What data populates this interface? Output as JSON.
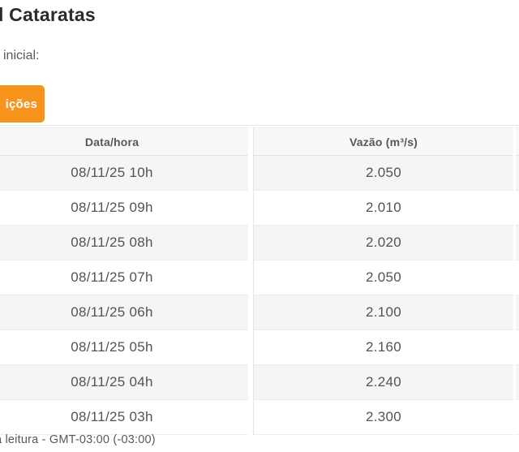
{
  "page": {
    "title_fragment": "l Cataratas",
    "inicial_label_fragment": "inicial:",
    "footer_note_fragment": "a leitura - GMT-03:00 (-03:00)"
  },
  "tab": {
    "label_fragment": "ições",
    "color": "#F7941E"
  },
  "table": {
    "columns": [
      {
        "label": "Data/hora"
      },
      {
        "label": "Vazão (m³/s)"
      }
    ],
    "rows": [
      {
        "datetime": "08/11/25 10h",
        "flow": "2.050"
      },
      {
        "datetime": "08/11/25 09h",
        "flow": "2.010"
      },
      {
        "datetime": "08/11/25 08h",
        "flow": "2.020"
      },
      {
        "datetime": "08/11/25 07h",
        "flow": "2.050"
      },
      {
        "datetime": "08/11/25 06h",
        "flow": "2.100"
      },
      {
        "datetime": "08/11/25 05h",
        "flow": "2.160"
      },
      {
        "datetime": "08/11/25 04h",
        "flow": "2.240"
      },
      {
        "datetime": "08/11/25 03h",
        "flow": "2.300"
      }
    ]
  },
  "colors": {
    "tab_orange": "#F7941E",
    "row_stripe": "#f5f5f6",
    "header_bg": "#f8f8f9",
    "text_gray": "#55595c"
  }
}
